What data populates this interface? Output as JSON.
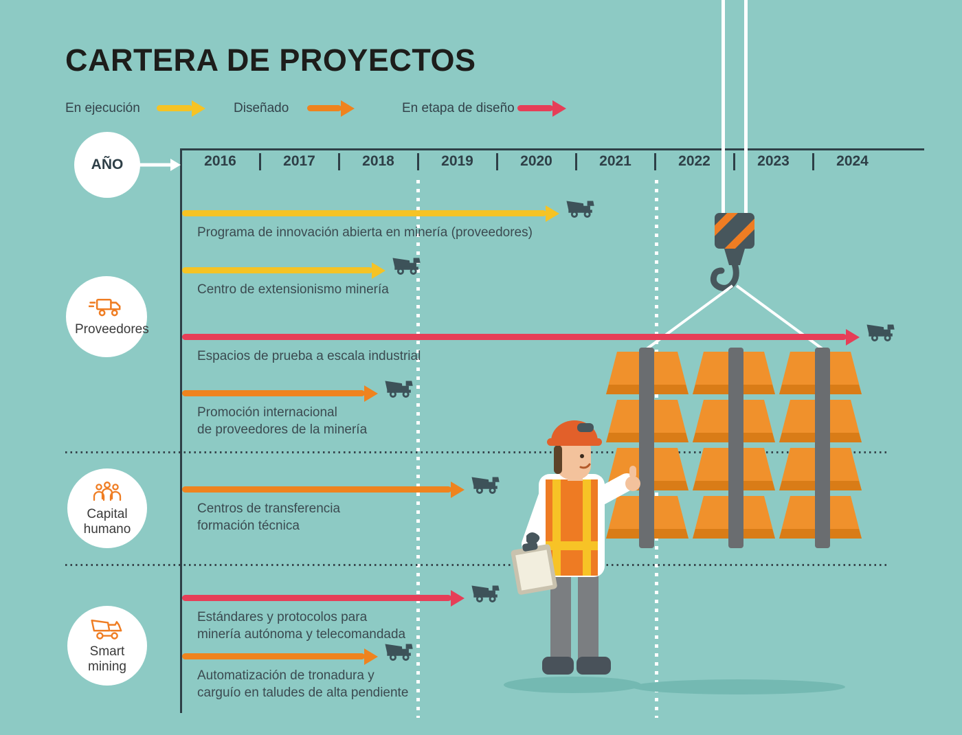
{
  "title": "CARTERA DE PROYECTOS",
  "legend": [
    {
      "key": "en-ejecucion",
      "label": "En ejecución",
      "color": "#f6c324"
    },
    {
      "key": "disenado",
      "label": "Diseñado",
      "color": "#ef831e"
    },
    {
      "key": "en-etapa-de-diseno",
      "label": "En etapa de diseño",
      "color": "#e63e57"
    }
  ],
  "axis": {
    "label": "AÑO",
    "years": [
      "2016",
      "2017",
      "2018",
      "2019",
      "2020",
      "2021",
      "2022",
      "2023",
      "2024"
    ]
  },
  "categories": [
    {
      "label": "Proveedores",
      "icon": "delivery-truck-icon"
    },
    {
      "label": "Capital humano",
      "icon": "people-icon"
    },
    {
      "label": "Smart mining",
      "icon": "mining-truck-icon"
    }
  ],
  "chart_data": {
    "type": "gantt",
    "title": "CARTERA DE PROYECTOS",
    "x_axis": {
      "label": "AÑO",
      "ticks": [
        2016,
        2017,
        2018,
        2019,
        2020,
        2021,
        2022,
        2023,
        2024
      ]
    },
    "statuses": [
      {
        "key": "en-ejecucion",
        "label": "En ejecución",
        "color": "#f6c324"
      },
      {
        "key": "disenado",
        "label": "Diseñado",
        "color": "#ef831e"
      },
      {
        "key": "en-etapa-de-diseno",
        "label": "En etapa de diseño",
        "color": "#e63e57"
      }
    ],
    "projects": [
      {
        "label": "Programa de innovación abierta en minería (proveedores)",
        "category": "Proveedores",
        "status": "En ejecución",
        "status_key": "en-ejecucion",
        "start": 2016,
        "end": 2020.8
      },
      {
        "label": "Centro de extensionismo minería",
        "category": "Proveedores",
        "status": "En ejecución",
        "status_key": "en-ejecucion",
        "start": 2016,
        "end": 2018.6
      },
      {
        "label": "Espacios de prueba a escala industrial",
        "category": "Proveedores",
        "status": "En etapa de diseño",
        "status_key": "en-etapa-de-diseno",
        "start": 2016,
        "end": 2024.6
      },
      {
        "label": "Promoción internacional\nde proveedores de la minería",
        "category": "Proveedores",
        "status": "Diseñado",
        "status_key": "disenado",
        "start": 2016,
        "end": 2018.5
      },
      {
        "label": "Centros de transferencia\nformación técnica",
        "category": "Capital humano",
        "status": "Diseñado",
        "status_key": "disenado",
        "start": 2016,
        "end": 2019.6
      },
      {
        "label": "Estándares y protocolos para\nminería autónoma y telecomandada",
        "category": "Smart mining",
        "status": "En etapa de diseño",
        "status_key": "en-etapa-de-diseno",
        "start": 2016,
        "end": 2019.6
      },
      {
        "label": "Automatización de tronadura y\ncarguío en taludes de alta pendiente",
        "category": "Smart mining",
        "status": "Diseñado",
        "status_key": "disenado",
        "start": 2016,
        "end": 2018.5
      }
    ]
  },
  "colors": {
    "background": "#8dcac4",
    "text_dark": "#2e3f47",
    "truck": "#3d5259",
    "ingot": "#f0912c",
    "ingot_shade": "#d97c17",
    "strap": "#6a6d70",
    "crane_dark": "#47565c",
    "crane_stripe": "#ef7d23",
    "shadow": "#74b9b2",
    "hat": "#e2602a",
    "vest": "#ee7b23"
  }
}
